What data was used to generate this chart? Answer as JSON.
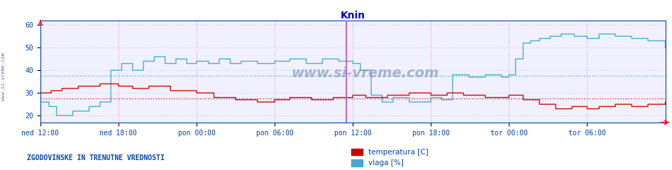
{
  "title": "Knin",
  "title_color": "#0000cc",
  "xlabel_ticks": [
    "ned 12:00",
    "ned 18:00",
    "pon 00:00",
    "pon 06:00",
    "pon 12:00",
    "pon 18:00",
    "tor 00:00",
    "tor 06:00"
  ],
  "ylabel_ticks": [
    20,
    30,
    40,
    50,
    60
  ],
  "ylim": [
    17,
    62
  ],
  "xlim_min": 0,
  "xlim_max": 576,
  "xtick_positions": [
    0,
    72,
    144,
    216,
    288,
    360,
    432,
    504
  ],
  "hline_red": 27.5,
  "hline_cyan": 37.5,
  "vertical_line_x": 282,
  "vertical_line_color": "#cc44cc",
  "grid_color": "#ccccdd",
  "bg_color": "#ffffff",
  "plot_bg_color": "#f0f0ff",
  "temp_color": "#cc0000",
  "vlaga_color": "#44aacc",
  "watermark": "www.si-vreme.com",
  "watermark_color": "#8899bb",
  "bottom_text": "ZGODOVINSKE IN TRENUTNE VREDNOSTI",
  "bottom_text_color": "#0044aa",
  "legend_temp": "temperatura [C]",
  "legend_vlaga": "vlaga [%]",
  "legend_color": "#0044aa",
  "sidebar_text": "www.si-vreme.com",
  "sidebar_color": "#5577aa",
  "red_vline_color": "#ffaaaa",
  "hline_red_color": "#dd2222",
  "hline_cyan_color": "#44aacc"
}
